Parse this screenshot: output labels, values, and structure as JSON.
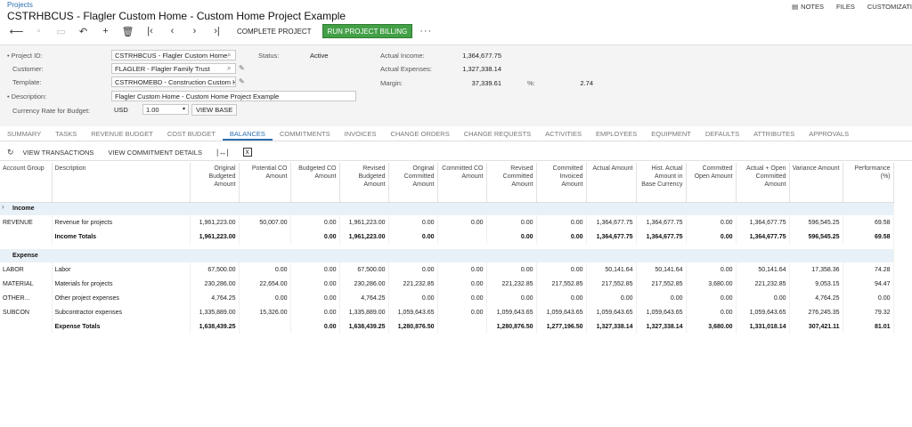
{
  "breadcrumb": "Projects",
  "title": "CSTRHBCUS - Flagler Custom Home - Custom Home Project Example",
  "top_links": {
    "notes": "NOTES",
    "files": "FILES",
    "customization": "CUSTOMIZATI"
  },
  "toolbar": {
    "complete": "COMPLETE PROJECT",
    "run_billing": "RUN PROJECT BILLING"
  },
  "summary": {
    "project_id_label": "Project ID:",
    "project_id": "CSTRHBCUS - Flagler Custom Home",
    "customer_label": "Customer:",
    "customer": "FLAGLER - Flagler Family Trust",
    "template_label": "Template:",
    "template": "CSTRHOMEBD - Construction Custom H",
    "description_label": "Description:",
    "description": "Flagler Custom Home - Custom Home Project Example",
    "currency_label": "Currency Rate for Budget:",
    "currency": "USD",
    "rate": "1.00",
    "view_base": "VIEW BASE",
    "status_label": "Status:",
    "status": "Active",
    "actual_income_label": "Actual Income:",
    "actual_income": "1,364,677.75",
    "actual_expenses_label": "Actual Expenses:",
    "actual_expenses": "1,327,338.14",
    "margin_label": "Margin:",
    "margin": "37,339.61",
    "pct_label": "%:",
    "margin_pct": "2.74"
  },
  "tabs": [
    "SUMMARY",
    "TASKS",
    "REVENUE BUDGET",
    "COST BUDGET",
    "BALANCES",
    "COMMITMENTS",
    "INVOICES",
    "CHANGE ORDERS",
    "CHANGE REQUESTS",
    "ACTIVITIES",
    "EMPLOYEES",
    "EQUIPMENT",
    "DEFAULTS",
    "ATTRIBUTES",
    "APPROVALS"
  ],
  "active_tab": "BALANCES",
  "grid_toolbar": {
    "view_transactions": "VIEW TRANSACTIONS",
    "view_commitment": "VIEW COMMITMENT DETAILS"
  },
  "columns": [
    "Account Group",
    "Description",
    "Original Budgeted Amount",
    "Potential CO Amount",
    "Budgeted CO Amount",
    "Revised Budgeted Amount",
    "Original Committed Amount",
    "Committed CO Amount",
    "Revised Committed Amount",
    "Committed Invoiced Amount",
    "Actual Amount",
    "Hist. Actual Amount in Base Currency",
    "Committed Open Amount",
    "Actual + Open Committed Amount",
    "Variance Amount",
    "Performance (%)"
  ],
  "groups": [
    {
      "name": "Income",
      "rows": [
        [
          "REVENUE",
          "Revenue for projects",
          "1,961,223.00",
          "50,007.00",
          "0.00",
          "1,961,223.00",
          "0.00",
          "0.00",
          "0.00",
          "0.00",
          "1,364,677.75",
          "1,364,677.75",
          "0.00",
          "1,364,677.75",
          "596,545.25",
          "69.58"
        ]
      ],
      "total": [
        "",
        "Income Totals",
        "1,961,223.00",
        "",
        "0.00",
        "1,961,223.00",
        "0.00",
        "",
        "0.00",
        "0.00",
        "1,364,677.75",
        "1,364,677.75",
        "0.00",
        "1,364,677.75",
        "596,545.25",
        "69.58"
      ]
    },
    {
      "name": "Expense",
      "rows": [
        [
          "LABOR",
          "Labor",
          "67,500.00",
          "0.00",
          "0.00",
          "67,500.00",
          "0.00",
          "0.00",
          "0.00",
          "0.00",
          "50,141.64",
          "50,141.64",
          "0.00",
          "50,141.64",
          "17,358.36",
          "74.28"
        ],
        [
          "MATERIAL",
          "Materials for projects",
          "230,286.00",
          "22,654.00",
          "0.00",
          "230,286.00",
          "221,232.85",
          "0.00",
          "221,232.85",
          "217,552.85",
          "217,552.85",
          "217,552.85",
          "3,680.00",
          "221,232.85",
          "9,053.15",
          "94.47"
        ],
        [
          "OTHER...",
          "Other project expenses",
          "4,764.25",
          "0.00",
          "0.00",
          "4,764.25",
          "0.00",
          "0.00",
          "0.00",
          "0.00",
          "0.00",
          "0.00",
          "0.00",
          "0.00",
          "4,764.25",
          "0.00"
        ],
        [
          "SUBCON",
          "Subcontractor expenses",
          "1,335,889.00",
          "15,326.00",
          "0.00",
          "1,335,889.00",
          "1,059,643.65",
          "0.00",
          "1,059,643.65",
          "1,059,643.65",
          "1,059,643.65",
          "1,059,643.65",
          "0.00",
          "1,059,643.65",
          "276,245.35",
          "79.32"
        ]
      ],
      "total": [
        "",
        "Expense Totals",
        "1,638,439.25",
        "",
        "0.00",
        "1,638,439.25",
        "1,280,876.50",
        "",
        "1,280,876.50",
        "1,277,196.50",
        "1,327,338.14",
        "1,327,338.14",
        "3,680.00",
        "1,331,018.14",
        "307,421.11",
        "81.01"
      ]
    }
  ],
  "colors": {
    "accent": "#2b6fb0",
    "run_button": "#43a047",
    "group_row": "#e9f1f8"
  }
}
